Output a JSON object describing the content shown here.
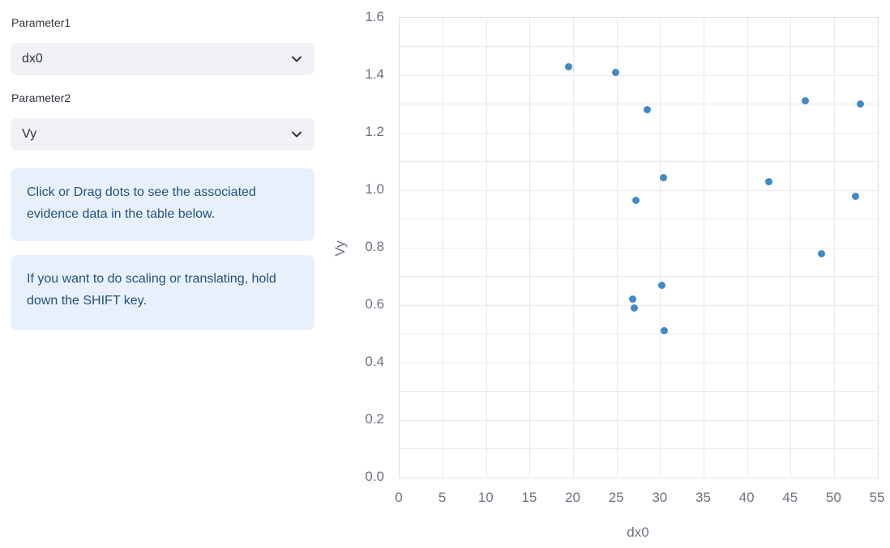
{
  "sidebar": {
    "param1": {
      "label": "Parameter1",
      "value": "dx0"
    },
    "param2": {
      "label": "Parameter2",
      "value": "Vy"
    },
    "info_boxes": [
      {
        "text": "Click or Drag dots to see the associated evidence data in the table below."
      },
      {
        "text": "If you want to do scaling or translating, hold down the SHIFT key."
      }
    ]
  },
  "chart_data": {
    "type": "scatter",
    "title": "",
    "xlabel": "dx0",
    "ylabel": "Vy",
    "xlim": [
      0,
      55
    ],
    "ylim": [
      0.0,
      1.6
    ],
    "x_ticks": [
      0,
      5,
      10,
      15,
      20,
      25,
      30,
      35,
      40,
      45,
      50,
      55
    ],
    "y_ticks": [
      "0.0",
      "0.2",
      "0.4",
      "0.6",
      "0.8",
      "1.0",
      "1.2",
      "1.4",
      "1.6"
    ],
    "x_grid_step": 5,
    "y_grid_step": 0.1,
    "grid": true,
    "legend": "none",
    "point_color": "#4189c7",
    "points": [
      [
        19.4,
        1.43
      ],
      [
        24.8,
        1.41
      ],
      [
        28.5,
        1.28
      ],
      [
        30.3,
        1.045
      ],
      [
        27.2,
        0.965
      ],
      [
        42.5,
        1.03
      ],
      [
        46.7,
        1.31
      ],
      [
        53.0,
        1.3
      ],
      [
        52.4,
        0.98
      ],
      [
        48.5,
        0.78
      ],
      [
        30.2,
        0.67
      ],
      [
        26.8,
        0.62
      ],
      [
        27.0,
        0.59
      ],
      [
        30.4,
        0.51
      ]
    ]
  },
  "colors": {
    "select_bg": "#f0f2f6",
    "info_bg": "#e8f1fb",
    "info_text": "#21527f",
    "axis_text": "#6f7180",
    "gridline": "#e9e9ee",
    "plot_border": "#e1e1e6",
    "point": "#4189c7",
    "text": "#31333f"
  }
}
